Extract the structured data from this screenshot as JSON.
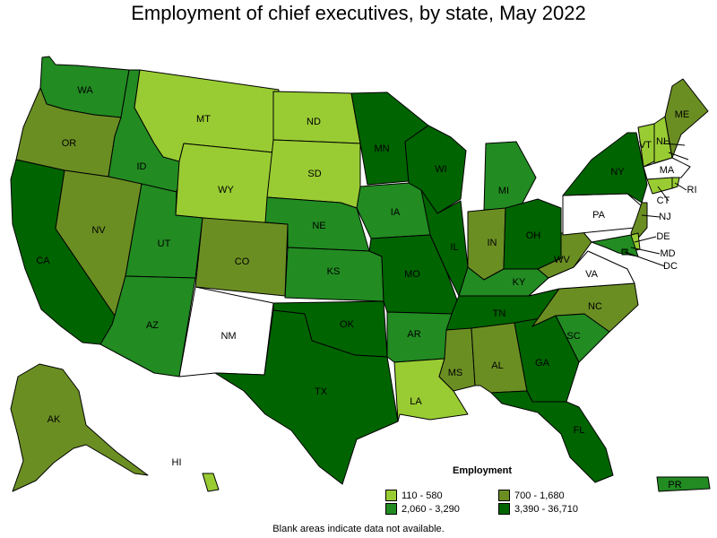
{
  "title": "Employment of chief executives, by state, May 2022",
  "legend": {
    "title": "Employment",
    "items": [
      {
        "label": "110 - 580",
        "color": "#99cc33"
      },
      {
        "label": "700 - 1,680",
        "color": "#6b8e23"
      },
      {
        "label": "2,060 - 3,290",
        "color": "#228b22"
      },
      {
        "label": "3,390 - 36,710",
        "color": "#006400"
      }
    ]
  },
  "footnote": "Blank areas indicate data not available.",
  "no_data_color": "#ffffff",
  "states": [
    {
      "abbr": "WA",
      "bin": 2
    },
    {
      "abbr": "OR",
      "bin": 1
    },
    {
      "abbr": "CA",
      "bin": 3
    },
    {
      "abbr": "ID",
      "bin": 2
    },
    {
      "abbr": "NV",
      "bin": 1
    },
    {
      "abbr": "MT",
      "bin": 0
    },
    {
      "abbr": "WY",
      "bin": 0
    },
    {
      "abbr": "UT",
      "bin": 2
    },
    {
      "abbr": "AZ",
      "bin": 2
    },
    {
      "abbr": "CO",
      "bin": 1
    },
    {
      "abbr": "NM",
      "bin": null
    },
    {
      "abbr": "ND",
      "bin": 0
    },
    {
      "abbr": "SD",
      "bin": 0
    },
    {
      "abbr": "NE",
      "bin": 2
    },
    {
      "abbr": "KS",
      "bin": 2
    },
    {
      "abbr": "OK",
      "bin": 3
    },
    {
      "abbr": "TX",
      "bin": 3
    },
    {
      "abbr": "MN",
      "bin": 3
    },
    {
      "abbr": "IA",
      "bin": 2
    },
    {
      "abbr": "MO",
      "bin": 3
    },
    {
      "abbr": "AR",
      "bin": 2
    },
    {
      "abbr": "LA",
      "bin": 0
    },
    {
      "abbr": "WI",
      "bin": 3
    },
    {
      "abbr": "IL",
      "bin": 3
    },
    {
      "abbr": "MI",
      "bin": 2
    },
    {
      "abbr": "IN",
      "bin": 1
    },
    {
      "abbr": "OH",
      "bin": 3
    },
    {
      "abbr": "KY",
      "bin": 2
    },
    {
      "abbr": "TN",
      "bin": 3
    },
    {
      "abbr": "MS",
      "bin": 1
    },
    {
      "abbr": "AL",
      "bin": 1
    },
    {
      "abbr": "GA",
      "bin": 3
    },
    {
      "abbr": "FL",
      "bin": 3
    },
    {
      "abbr": "SC",
      "bin": 2
    },
    {
      "abbr": "NC",
      "bin": 1
    },
    {
      "abbr": "VA",
      "bin": null
    },
    {
      "abbr": "WV",
      "bin": 1
    },
    {
      "abbr": "PA",
      "bin": null
    },
    {
      "abbr": "NY",
      "bin": 3
    },
    {
      "abbr": "VT",
      "bin": 0
    },
    {
      "abbr": "NH",
      "bin": 0
    },
    {
      "abbr": "ME",
      "bin": 1
    },
    {
      "abbr": "MA",
      "bin": null
    },
    {
      "abbr": "RI",
      "bin": 0
    },
    {
      "abbr": "CT",
      "bin": 0
    },
    {
      "abbr": "NJ",
      "bin": 1
    },
    {
      "abbr": "DE",
      "bin": 0
    },
    {
      "abbr": "MD",
      "bin": 2
    },
    {
      "abbr": "DC",
      "bin": 3
    },
    {
      "abbr": "AK",
      "bin": 1
    },
    {
      "abbr": "HI",
      "bin": 0
    },
    {
      "abbr": "PR",
      "bin": 2
    }
  ]
}
